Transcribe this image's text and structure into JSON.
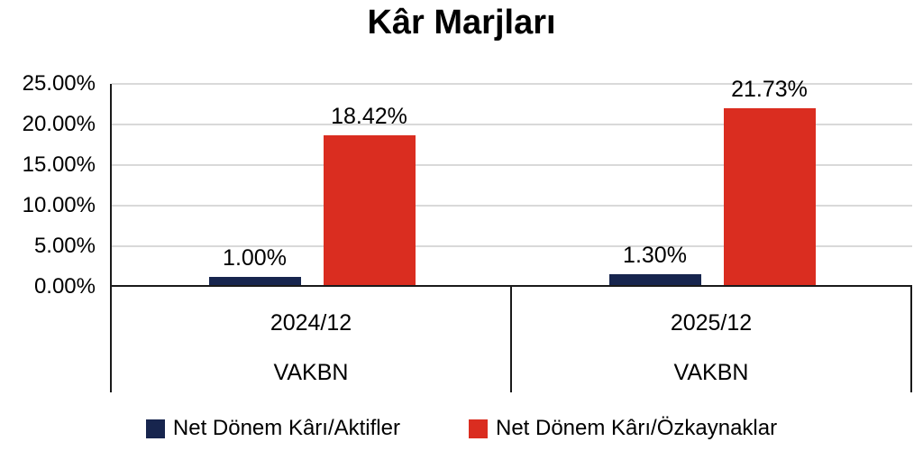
{
  "chart_data": {
    "type": "bar",
    "title": "Kâr Marjları",
    "groups": [
      {
        "period": "2024/12",
        "ticker": "VAKBN"
      },
      {
        "period": "2025/12",
        "ticker": "VAKBN"
      }
    ],
    "series": [
      {
        "name": "Net Dönem Kârı/Aktifler",
        "color": "#17254e",
        "values": [
          1.0,
          1.3
        ],
        "value_labels": [
          "1.00%",
          "1.30%"
        ]
      },
      {
        "name": "Net Dönem Kârı/Özkaynaklar",
        "color": "#da2d20",
        "values": [
          18.42,
          21.73
        ],
        "value_labels": [
          "18.42%",
          "21.73%"
        ]
      }
    ],
    "y_axis": {
      "min": 0,
      "max": 25,
      "step": 5,
      "tick_labels": [
        "0.00%",
        "5.00%",
        "10.00%",
        "15.00%",
        "20.00%",
        "25.00%"
      ]
    },
    "grid": "horizontal",
    "gridline_color": "#d9d9d9",
    "axis_line_color": "#1a1a1a",
    "legend_position": "bottom"
  }
}
